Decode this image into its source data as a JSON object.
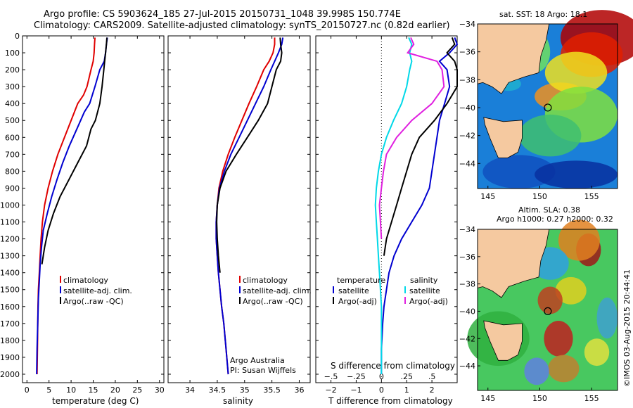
{
  "header": {
    "line1": "Argo profile: CS 5903624_185 27-Jul-2015 20150731_1048 39.998S 150.774E",
    "line2": "Climatology: CARS2009. Satellite-adjusted climatology: synTS_20150727.nc (0.82d earlier)"
  },
  "colors": {
    "climatology": "#e00000",
    "satellite": "#0000d0",
    "argo": "#000000",
    "sal_satellite": "#00d8e8",
    "sal_argo": "#e020e0",
    "land": "#f5c9a0"
  },
  "panels": {
    "temperature": {
      "xlabel": "temperature (deg C)",
      "legend": [
        "climatology",
        "satellite-adj. clim.",
        "Argo(..raw -QC)"
      ]
    },
    "salinity": {
      "xlabel": "salinity",
      "legend": [
        "climatology",
        "satellite-adj. clim.",
        "Argo(..raw -QC)"
      ],
      "credit1": "Argo Australia",
      "credit2": "PI: Susan Wijffels"
    },
    "difference": {
      "top_label": "S difference from climatology",
      "bottom_label": "T difference from climatology",
      "legend_temp_title": "temperature",
      "legend_sal_title": "salinity",
      "legend_temp": [
        "satellite",
        "Argo(-adj)"
      ],
      "legend_sal": [
        "satellite",
        "Argo(-adj)"
      ]
    },
    "sst_map": {
      "title": "sat. SST: 18 Argo: 18.1"
    },
    "sla_map": {
      "title1": "Altim. SLA: 0.38",
      "title2": "Argo h1000: 0.27 h2000: 0.32"
    },
    "stamp": "©IMOS 03-Aug-2015 20:44:41"
  },
  "chart_data": [
    {
      "type": "line",
      "title": "",
      "xlabel": "temperature (deg C)",
      "ylabel": "",
      "xlim": [
        -1,
        31
      ],
      "ylim": [
        2050,
        0
      ],
      "xticks": [
        0,
        5,
        10,
        15,
        20,
        25,
        30
      ],
      "yticks": [
        0,
        100,
        200,
        300,
        400,
        500,
        600,
        700,
        800,
        900,
        1000,
        1100,
        1200,
        1300,
        1400,
        1500,
        1600,
        1700,
        1800,
        1900,
        2000
      ],
      "series": [
        {
          "name": "climatology",
          "color": "#e00000",
          "x": [
            15.4,
            15.3,
            15.2,
            15.0,
            14.5,
            13.6,
            12.8,
            11.5,
            10.0,
            8.5,
            7.0,
            5.8,
            4.8,
            4.0,
            3.5,
            3.2,
            3.0,
            2.8,
            2.6,
            2.5,
            2.4,
            2.3
          ],
          "y": [
            10,
            50,
            100,
            150,
            200,
            300,
            350,
            400,
            500,
            600,
            700,
            800,
            900,
            1000,
            1100,
            1200,
            1300,
            1400,
            1500,
            1600,
            1800,
            2000
          ]
        },
        {
          "name": "satellite-adj. clim.",
          "color": "#0000d0",
          "x": [
            18.2,
            18.0,
            17.8,
            17.5,
            16.5,
            15.4,
            14.2,
            13.0,
            11.3,
            9.6,
            8.1,
            6.8,
            5.6,
            4.6,
            3.7,
            3.3,
            3.0,
            2.8,
            2.6,
            2.5,
            2.3,
            2.2
          ],
          "y": [
            10,
            50,
            100,
            150,
            200,
            300,
            400,
            450,
            550,
            650,
            750,
            850,
            950,
            1050,
            1150,
            1250,
            1350,
            1450,
            1550,
            1650,
            1850,
            2000
          ]
        },
        {
          "name": "Argo(..raw -QC)",
          "color": "#000000",
          "x": [
            18.1,
            18.0,
            17.8,
            17.6,
            17.4,
            17.0,
            16.5,
            15.5,
            14.5,
            13.5,
            11.5,
            9.5,
            7.5,
            6.0,
            4.8,
            4.0,
            3.4
          ],
          "y": [
            10,
            50,
            100,
            150,
            200,
            300,
            400,
            500,
            550,
            650,
            750,
            850,
            950,
            1050,
            1150,
            1250,
            1350
          ]
        }
      ]
    },
    {
      "type": "line",
      "title": "",
      "xlabel": "salinity",
      "ylabel": "",
      "xlim": [
        33.6,
        36.2
      ],
      "ylim": [
        2050,
        0
      ],
      "xticks": [
        34,
        34.5,
        35,
        35.5,
        36
      ],
      "series": [
        {
          "name": "climatology",
          "color": "#e00000",
          "x": [
            35.55,
            35.55,
            35.52,
            35.45,
            35.35,
            35.22,
            35.08,
            34.95,
            34.82,
            34.7,
            34.6,
            34.53,
            34.5,
            34.48,
            34.48,
            34.5,
            34.52,
            34.55,
            34.58,
            34.62,
            34.66,
            34.7
          ],
          "y": [
            10,
            50,
            100,
            150,
            200,
            300,
            400,
            500,
            600,
            700,
            800,
            900,
            1000,
            1100,
            1200,
            1300,
            1400,
            1500,
            1600,
            1700,
            1850,
            2000
          ]
        },
        {
          "name": "satellite-adj. clim.",
          "color": "#0000d0",
          "x": [
            35.7,
            35.68,
            35.62,
            35.55,
            35.48,
            35.35,
            35.2,
            35.05,
            34.9,
            34.75,
            34.63,
            34.54,
            34.5,
            34.48,
            34.48,
            34.5,
            34.52,
            34.55,
            34.58,
            34.62,
            34.66,
            34.7
          ],
          "y": [
            10,
            50,
            100,
            150,
            200,
            300,
            400,
            500,
            600,
            700,
            800,
            900,
            1000,
            1100,
            1200,
            1300,
            1400,
            1500,
            1600,
            1700,
            1850,
            2000
          ]
        },
        {
          "name": "Argo(..raw -QC)",
          "color": "#000000",
          "x": [
            35.65,
            35.66,
            35.68,
            35.66,
            35.58,
            35.5,
            35.42,
            35.25,
            35.05,
            34.85,
            34.66,
            34.55,
            34.5,
            34.49,
            34.5,
            34.52,
            34.55
          ],
          "y": [
            10,
            50,
            100,
            150,
            200,
            300,
            400,
            500,
            600,
            700,
            800,
            900,
            1000,
            1100,
            1200,
            1300,
            1400
          ]
        }
      ]
    },
    {
      "type": "line",
      "title": "",
      "xlabel": "T difference from climatology",
      "ylabel": "",
      "xlim": [
        -2.6,
        3
      ],
      "ylim": [
        2050,
        0
      ],
      "xticks": [
        -2,
        -1,
        0,
        1,
        2
      ],
      "top_xlabel": "S difference from climatology",
      "top_xticks": [
        -0.5,
        -0.25,
        0,
        0.25,
        0.5
      ],
      "series": [
        {
          "name": "temperature satellite",
          "color": "#0000d0",
          "x": [
            2.9,
            3.0,
            2.7,
            2.3,
            2.6,
            2.7,
            2.5,
            2.3,
            2.2,
            2.1,
            2.0,
            1.9,
            1.6,
            1.2,
            0.8,
            0.5,
            0.3,
            0.2,
            0.1,
            0.05,
            0.0,
            0.0
          ],
          "y": [
            10,
            50,
            100,
            150,
            200,
            300,
            400,
            500,
            600,
            700,
            800,
            900,
            1000,
            1100,
            1200,
            1300,
            1400,
            1500,
            1600,
            1700,
            1850,
            2000
          ]
        },
        {
          "name": "temperature Argo(-adj)",
          "color": "#000000",
          "x": [
            2.8,
            2.9,
            2.6,
            2.9,
            3.0,
            3.0,
            2.6,
            2.1,
            1.5,
            1.2,
            1.0,
            0.8,
            0.6,
            0.4,
            0.2,
            0.1
          ],
          "y": [
            10,
            50,
            100,
            150,
            200,
            300,
            400,
            500,
            600,
            700,
            800,
            900,
            1000,
            1100,
            1200,
            1300
          ]
        },
        {
          "name": "salinity satellite",
          "color": "#00d8e8",
          "x": [
            0.27,
            0.3,
            0.28,
            0.3,
            0.28,
            0.25,
            0.2,
            0.12,
            0.05,
            0.0,
            -0.03,
            -0.05,
            -0.06,
            -0.05,
            -0.04,
            -0.03,
            -0.02,
            -0.01,
            0.0,
            0.0,
            0.0,
            0.0
          ],
          "y": [
            10,
            50,
            100,
            150,
            200,
            300,
            400,
            500,
            600,
            700,
            800,
            900,
            1000,
            1100,
            1200,
            1300,
            1400,
            1500,
            1600,
            1700,
            1850,
            2000
          ]
        },
        {
          "name": "salinity Argo(-adj)",
          "color": "#e020e0",
          "x": [
            0.29,
            0.32,
            0.26,
            0.55,
            0.6,
            0.62,
            0.5,
            0.3,
            0.15,
            0.05,
            0.02,
            0.0,
            -0.02,
            -0.01,
            0.0
          ],
          "y": [
            10,
            50,
            100,
            150,
            200,
            300,
            400,
            500,
            600,
            700,
            800,
            900,
            1000,
            1100,
            1200
          ]
        }
      ]
    }
  ],
  "maps": {
    "sst": {
      "xticks": [
        145,
        150,
        155
      ],
      "yticks": [
        -34,
        -36,
        -38,
        -40,
        -42,
        -44
      ],
      "argo_marker": [
        150.774,
        -39.998
      ]
    },
    "sla": {
      "xticks": [
        145,
        150,
        155
      ],
      "yticks": [
        -34,
        -36,
        -38,
        -40,
        -42,
        -44
      ],
      "argo_marker": [
        150.774,
        -39.998
      ]
    }
  }
}
